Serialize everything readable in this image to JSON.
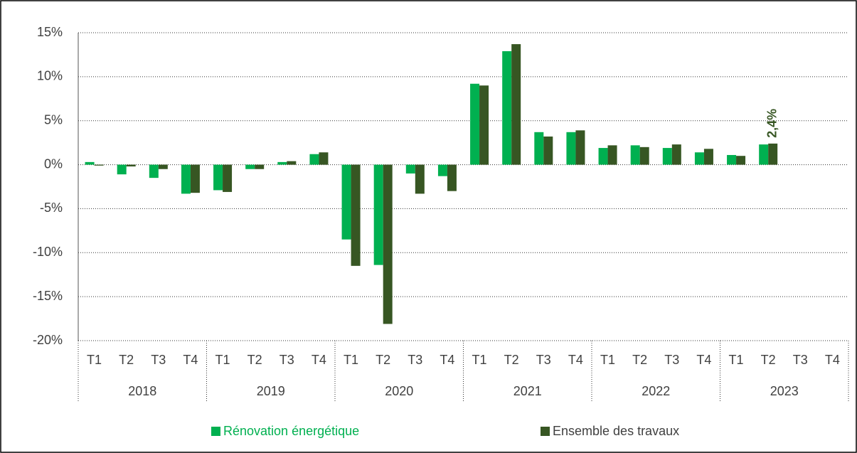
{
  "chart_data": {
    "type": "bar",
    "categories": [
      "T1",
      "T2",
      "T3",
      "T4",
      "T1",
      "T2",
      "T3",
      "T4",
      "T1",
      "T2",
      "T3",
      "T4",
      "T1",
      "T2",
      "T3",
      "T4",
      "T1",
      "T2",
      "T3",
      "T4",
      "T1",
      "T2",
      "T3",
      "T4"
    ],
    "years": [
      "2018",
      "2019",
      "2020",
      "2021",
      "2022",
      "2023"
    ],
    "series": [
      {
        "name": "Rénovation énergétique",
        "color": "#00b050",
        "values": [
          0.3,
          -1.1,
          -1.5,
          -3.3,
          -2.9,
          -0.5,
          0.3,
          1.2,
          -8.5,
          -11.4,
          -1.0,
          -1.3,
          9.2,
          12.9,
          3.7,
          3.7,
          1.9,
          2.2,
          1.9,
          1.4,
          1.1,
          2.3,
          null,
          null
        ]
      },
      {
        "name": "Ensemble des travaux",
        "color": "#375623",
        "values": [
          -0.1,
          -0.2,
          -0.5,
          -3.2,
          -3.1,
          -0.5,
          0.4,
          1.4,
          -11.5,
          -18.1,
          -3.3,
          -3.0,
          9.0,
          13.7,
          3.2,
          3.9,
          2.2,
          2.0,
          2.3,
          1.8,
          1.0,
          2.4,
          null,
          null
        ],
        "value_labels": [
          null,
          null,
          null,
          null,
          null,
          null,
          null,
          null,
          null,
          null,
          null,
          null,
          null,
          null,
          null,
          null,
          null,
          null,
          null,
          null,
          null,
          "2,4%",
          null,
          null
        ]
      }
    ],
    "ylim": [
      -20,
      15
    ],
    "yticks": [
      {
        "value": -20,
        "label": "-20%"
      },
      {
        "value": -15,
        "label": "-15%"
      },
      {
        "value": -10,
        "label": "-10%"
      },
      {
        "value": -5,
        "label": "-5%"
      },
      {
        "value": 0,
        "label": "0%"
      },
      {
        "value": 5,
        "label": "5%"
      },
      {
        "value": 10,
        "label": "10%"
      },
      {
        "value": 15,
        "label": "15%"
      }
    ],
    "grid": true,
    "legend": "bottom"
  }
}
